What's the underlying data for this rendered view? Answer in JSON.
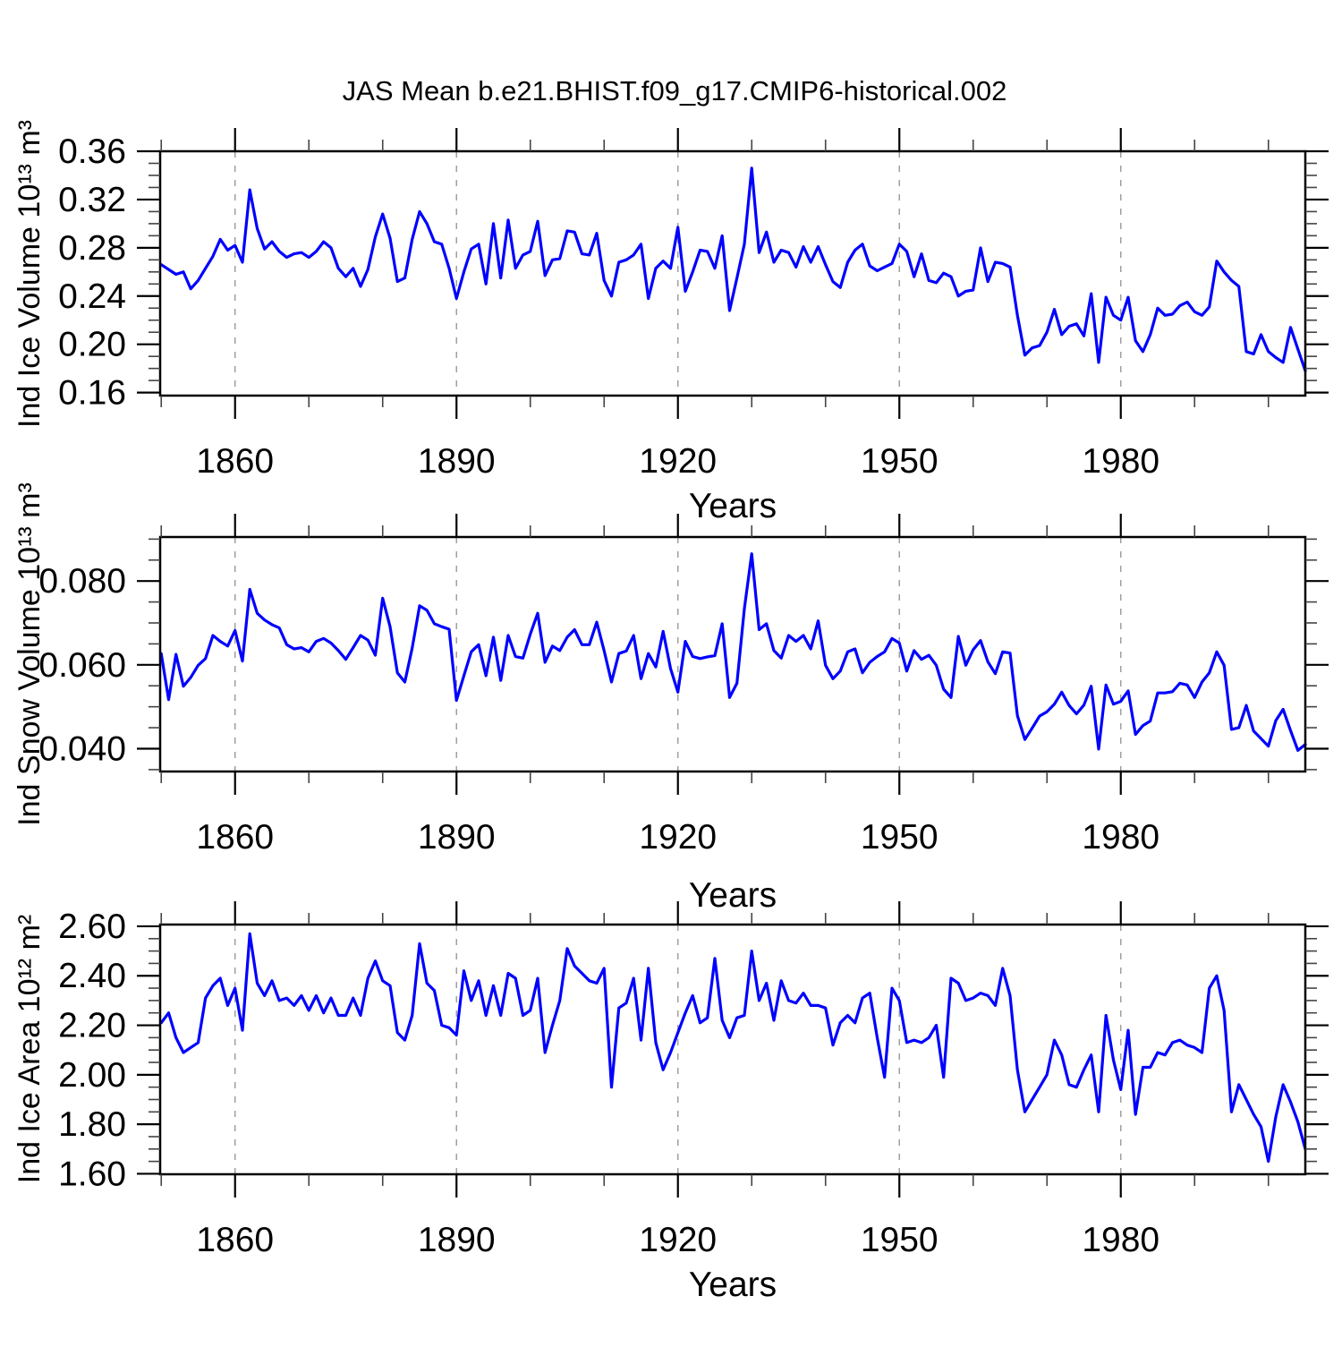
{
  "title": "JAS Mean b.e21.BHIST.f09_g17.CMIP6-historical.002",
  "figure": {
    "background": "#ffffff",
    "line_color": "#0000ff",
    "grid_color": "#999999",
    "frame_color": "#000000",
    "minor_tick_color": "#444444"
  },
  "x_axis": {
    "label": "Years",
    "range": [
      1849.85,
      2005.0
    ],
    "major_ticks": [
      1860,
      1890,
      1920,
      1950,
      1980
    ],
    "major_tick_labels": [
      "1860",
      "1890",
      "1920",
      "1950",
      "1980"
    ],
    "minor_step": 10
  },
  "chart_data": [
    {
      "type": "line",
      "name": "ind-ice-volume",
      "ylabel": "Ind Ice Volume 10¹³ m³",
      "xlabel": "Years",
      "ylim": [
        0.1575,
        0.36
      ],
      "ytick_values": [
        0.16,
        0.2,
        0.24,
        0.28,
        0.32,
        0.36
      ],
      "ytick_labels": [
        "0.16",
        "0.20",
        "0.24",
        "0.28",
        "0.32",
        "0.36"
      ],
      "y_minor_step": 0.01,
      "x_start": 1850,
      "x_step": 1,
      "grid": "x-major-dashed",
      "legend": "none",
      "values": [
        0.266,
        0.262,
        0.258,
        0.26,
        0.246,
        0.253,
        0.263,
        0.273,
        0.287,
        0.278,
        0.282,
        0.268,
        0.328,
        0.296,
        0.279,
        0.285,
        0.277,
        0.272,
        0.275,
        0.276,
        0.272,
        0.277,
        0.285,
        0.28,
        0.263,
        0.256,
        0.263,
        0.248,
        0.262,
        0.289,
        0.308,
        0.288,
        0.252,
        0.255,
        0.287,
        0.31,
        0.3,
        0.285,
        0.283,
        0.263,
        0.238,
        0.26,
        0.279,
        0.283,
        0.25,
        0.3,
        0.255,
        0.303,
        0.263,
        0.274,
        0.277,
        0.302,
        0.257,
        0.27,
        0.271,
        0.294,
        0.293,
        0.275,
        0.274,
        0.292,
        0.253,
        0.24,
        0.268,
        0.27,
        0.274,
        0.283,
        0.238,
        0.263,
        0.269,
        0.263,
        0.297,
        0.244,
        0.26,
        0.278,
        0.277,
        0.263,
        0.29,
        0.228,
        0.255,
        0.283,
        0.346,
        0.276,
        0.293,
        0.268,
        0.278,
        0.276,
        0.264,
        0.281,
        0.268,
        0.281,
        0.266,
        0.252,
        0.247,
        0.268,
        0.278,
        0.283,
        0.265,
        0.261,
        0.264,
        0.267,
        0.283,
        0.277,
        0.256,
        0.275,
        0.253,
        0.251,
        0.259,
        0.256,
        0.24,
        0.244,
        0.245,
        0.28,
        0.252,
        0.268,
        0.267,
        0.264,
        0.224,
        0.191,
        0.197,
        0.199,
        0.21,
        0.229,
        0.208,
        0.215,
        0.217,
        0.207,
        0.242,
        0.185,
        0.239,
        0.224,
        0.22,
        0.239,
        0.203,
        0.194,
        0.208,
        0.23,
        0.224,
        0.225,
        0.232,
        0.235,
        0.227,
        0.224,
        0.231,
        0.269,
        0.26,
        0.253,
        0.248,
        0.194,
        0.192,
        0.208,
        0.194,
        0.189,
        0.185,
        0.214,
        0.196,
        0.178
      ]
    },
    {
      "type": "line",
      "name": "ind-snow-volume",
      "ylabel": "Ind Snow Volume 10¹³ m³",
      "xlabel": "Years",
      "ylim": [
        0.03455,
        0.0905
      ],
      "ytick_values": [
        0.04,
        0.06,
        0.08
      ],
      "ytick_labels": [
        "0.040",
        "0.060",
        "0.080"
      ],
      "y_minor_step": 0.005,
      "x_start": 1850,
      "x_step": 1,
      "grid": "x-major-dashed",
      "legend": "none",
      "values": [
        0.0627,
        0.0517,
        0.0625,
        0.0549,
        0.057,
        0.0599,
        0.0615,
        0.067,
        0.0656,
        0.0645,
        0.0682,
        0.0609,
        0.078,
        0.0723,
        0.0707,
        0.0696,
        0.0688,
        0.0648,
        0.0638,
        0.0641,
        0.0631,
        0.0656,
        0.0663,
        0.0652,
        0.0634,
        0.0613,
        0.0641,
        0.067,
        0.0659,
        0.0623,
        0.0759,
        0.0691,
        0.0581,
        0.0559,
        0.064,
        0.0741,
        0.073,
        0.0698,
        0.0691,
        0.0685,
        0.0515,
        0.0574,
        0.0631,
        0.0648,
        0.0574,
        0.0666,
        0.0563,
        0.067,
        0.062,
        0.0616,
        0.0673,
        0.0723,
        0.0606,
        0.0645,
        0.0634,
        0.0666,
        0.0684,
        0.0648,
        0.0648,
        0.0702,
        0.0634,
        0.0559,
        0.0627,
        0.0633,
        0.067,
        0.0567,
        0.0627,
        0.0595,
        0.068,
        0.0591,
        0.0535,
        0.0656,
        0.062,
        0.0615,
        0.0619,
        0.0622,
        0.0698,
        0.0522,
        0.0556,
        0.0734,
        0.0865,
        0.0684,
        0.0698,
        0.0634,
        0.0616,
        0.067,
        0.0656,
        0.067,
        0.0638,
        0.0705,
        0.0599,
        0.0567,
        0.0585,
        0.0631,
        0.0638,
        0.0581,
        0.0606,
        0.062,
        0.0631,
        0.0663,
        0.0652,
        0.0585,
        0.0634,
        0.0613,
        0.0623,
        0.0599,
        0.0542,
        0.0522,
        0.0668,
        0.0599,
        0.0636,
        0.0658,
        0.0607,
        0.0579,
        0.0631,
        0.0628,
        0.0479,
        0.0422,
        0.0449,
        0.0478,
        0.0488,
        0.0506,
        0.0535,
        0.0503,
        0.0483,
        0.0504,
        0.0549,
        0.0399,
        0.0552,
        0.0506,
        0.0513,
        0.0538,
        0.0434,
        0.0455,
        0.0466,
        0.0533,
        0.0533,
        0.0536,
        0.0556,
        0.0552,
        0.0522,
        0.0559,
        0.0581,
        0.0631,
        0.0599,
        0.0446,
        0.045,
        0.0503,
        0.0442,
        0.0424,
        0.0406,
        0.0467,
        0.0494,
        0.0443,
        0.0396,
        0.041
      ]
    },
    {
      "type": "line",
      "name": "ind-ice-area",
      "ylabel": "Ind Ice Area 10¹² m²",
      "xlabel": "Years",
      "ylim": [
        1.598,
        2.607
      ],
      "ytick_values": [
        1.6,
        1.8,
        2.0,
        2.2,
        2.4,
        2.6
      ],
      "ytick_labels": [
        "1.60",
        "1.80",
        "2.00",
        "2.20",
        "2.40",
        "2.60"
      ],
      "y_minor_step": 0.05,
      "x_start": 1850,
      "x_step": 1,
      "grid": "x-major-dashed",
      "legend": "none",
      "values": [
        2.21,
        2.25,
        2.15,
        2.09,
        2.11,
        2.13,
        2.31,
        2.36,
        2.39,
        2.28,
        2.35,
        2.18,
        2.57,
        2.37,
        2.32,
        2.38,
        2.3,
        2.31,
        2.28,
        2.32,
        2.26,
        2.32,
        2.25,
        2.31,
        2.24,
        2.24,
        2.31,
        2.24,
        2.39,
        2.46,
        2.38,
        2.36,
        2.17,
        2.14,
        2.24,
        2.53,
        2.37,
        2.34,
        2.2,
        2.19,
        2.16,
        2.42,
        2.3,
        2.38,
        2.24,
        2.36,
        2.24,
        2.41,
        2.39,
        2.24,
        2.26,
        2.39,
        2.09,
        2.2,
        2.3,
        2.51,
        2.44,
        2.41,
        2.38,
        2.37,
        2.43,
        1.95,
        2.27,
        2.29,
        2.39,
        2.14,
        2.43,
        2.13,
        2.02,
        2.09,
        2.17,
        2.25,
        2.32,
        2.21,
        2.23,
        2.47,
        2.22,
        2.15,
        2.23,
        2.24,
        2.5,
        2.3,
        2.37,
        2.22,
        2.38,
        2.3,
        2.29,
        2.33,
        2.28,
        2.28,
        2.27,
        2.12,
        2.21,
        2.24,
        2.21,
        2.31,
        2.33,
        2.15,
        1.99,
        2.35,
        2.3,
        2.13,
        2.14,
        2.13,
        2.15,
        2.2,
        1.99,
        2.39,
        2.37,
        2.3,
        2.31,
        2.33,
        2.32,
        2.28,
        2.43,
        2.32,
        2.02,
        1.85,
        1.9,
        1.95,
        2.0,
        2.14,
        2.08,
        1.96,
        1.95,
        2.02,
        2.08,
        1.85,
        2.24,
        2.06,
        1.94,
        2.18,
        1.84,
        2.03,
        2.03,
        2.09,
        2.08,
        2.13,
        2.14,
        2.12,
        2.11,
        2.09,
        2.35,
        2.4,
        2.26,
        1.85,
        1.96,
        1.9,
        1.84,
        1.79,
        1.65,
        1.83,
        1.96,
        1.89,
        1.81,
        1.7
      ]
    }
  ]
}
